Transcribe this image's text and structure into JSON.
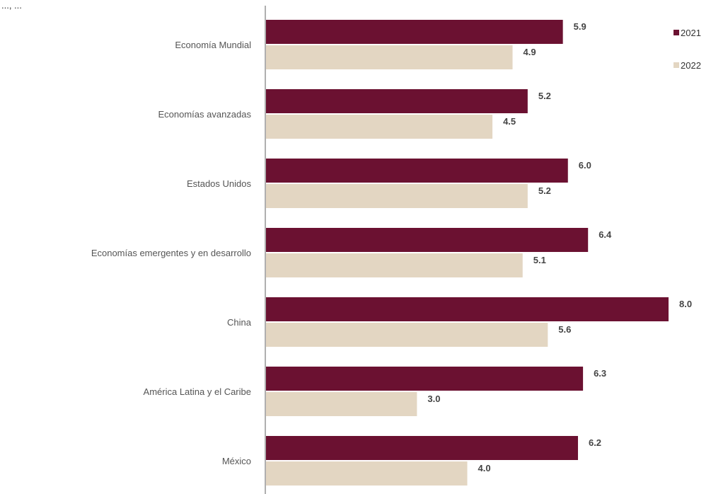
{
  "header_fragment": "..., ...",
  "chart_data": {
    "type": "bar",
    "orientation": "horizontal",
    "categories": [
      "Economía Mundial",
      "Economías avanzadas",
      "Estados Unidos",
      "Economías emergentes y en desarrollo",
      "China",
      "América Latina y el Caribe",
      "México"
    ],
    "series": [
      {
        "name": "2021",
        "color": "#6b1131",
        "values": [
          5.9,
          5.2,
          6.0,
          6.4,
          8.0,
          6.3,
          6.2
        ]
      },
      {
        "name": "2022",
        "color": "#e3d6c2",
        "values": [
          4.9,
          4.5,
          5.2,
          5.1,
          5.6,
          3.0,
          4.0
        ]
      }
    ],
    "value_labels": [
      [
        "5.9",
        "5.2",
        "6.0",
        "6.4",
        "8.0",
        "6.3",
        "6.2"
      ],
      [
        "4.9",
        "4.5",
        "5.2",
        "5.1",
        "5.6",
        "3.0",
        "4.0"
      ]
    ],
    "xlim": [
      0,
      8.2
    ],
    "legend_position": "top-right",
    "grid": false,
    "title": "",
    "xlabel": "",
    "ylabel": ""
  }
}
